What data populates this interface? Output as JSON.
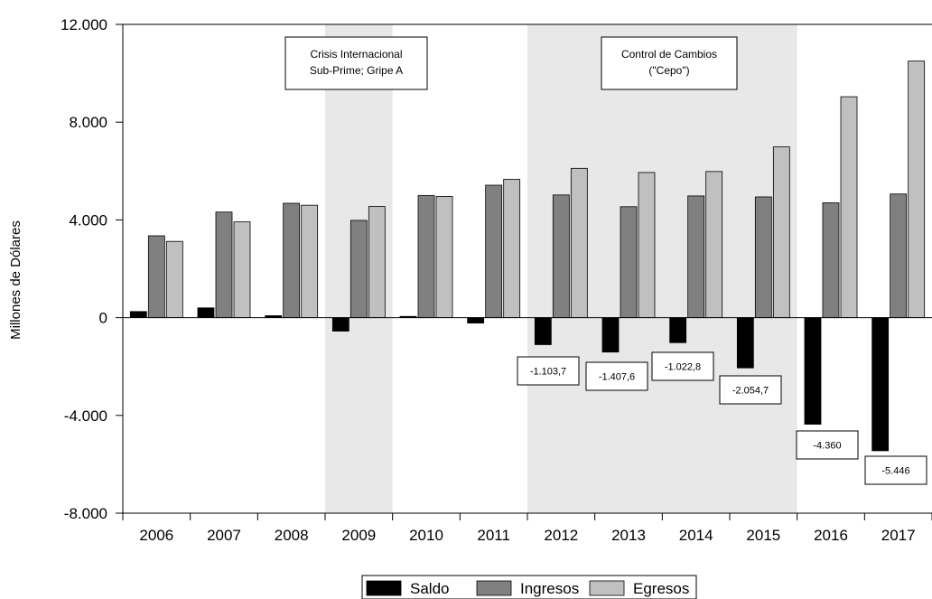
{
  "chart_data": {
    "type": "bar",
    "title": "",
    "xlabel": "",
    "ylabel": "Millones de Dólares",
    "categories": [
      "2006",
      "2007",
      "2008",
      "2009",
      "2010",
      "2011",
      "2012",
      "2013",
      "2014",
      "2015",
      "2016",
      "2017"
    ],
    "series": [
      {
        "name": "Saldo",
        "color": "#000000",
        "values": [
          250,
          400,
          80,
          -550,
          50,
          -220,
          -1103.7,
          -1407.6,
          -1022.8,
          -2054.7,
          -4360,
          -5446
        ]
      },
      {
        "name": "Ingresos",
        "color": "#808080",
        "values": [
          3350,
          4320,
          4680,
          3980,
          5000,
          5420,
          5020,
          4540,
          4980,
          4940,
          4700,
          5060
        ]
      },
      {
        "name": "Egresos",
        "color": "#c0c0c0",
        "values": [
          3120,
          3920,
          4600,
          4550,
          4960,
          5660,
          6110,
          5940,
          5980,
          6990,
          9040,
          10500
        ]
      }
    ],
    "ylim": [
      -8000,
      12000
    ],
    "yticks": [
      {
        "value": 12000,
        "label": "12.000"
      },
      {
        "value": 8000,
        "label": "8.000"
      },
      {
        "value": 4000,
        "label": "4.000"
      },
      {
        "value": 0,
        "label": "0"
      },
      {
        "value": -4000,
        "label": "-4.000"
      },
      {
        "value": -8000,
        "label": "-8.000"
      }
    ],
    "shaded_periods": [
      {
        "from": "2009",
        "to": "2009",
        "color": "#e8e8e8"
      },
      {
        "from": "2012",
        "to": "2015",
        "color": "#e8e8e8"
      }
    ],
    "annotations": [
      {
        "lines": [
          "Crisis Internacional",
          "Sub-Prime; Gripe A"
        ]
      },
      {
        "lines": [
          "Control de Cambios",
          "(\"Cepo\")"
        ]
      }
    ],
    "data_labels": [
      {
        "category": "2012",
        "label": "-1.103,7"
      },
      {
        "category": "2013",
        "label": "-1.407,6"
      },
      {
        "category": "2014",
        "label": "-1.022,8"
      },
      {
        "category": "2015",
        "label": "-2.054,7"
      },
      {
        "category": "2016",
        "label": "-4.360"
      },
      {
        "category": "2017",
        "label": "-5.446"
      }
    ],
    "legend_position": "bottom-center",
    "grid": false
  }
}
